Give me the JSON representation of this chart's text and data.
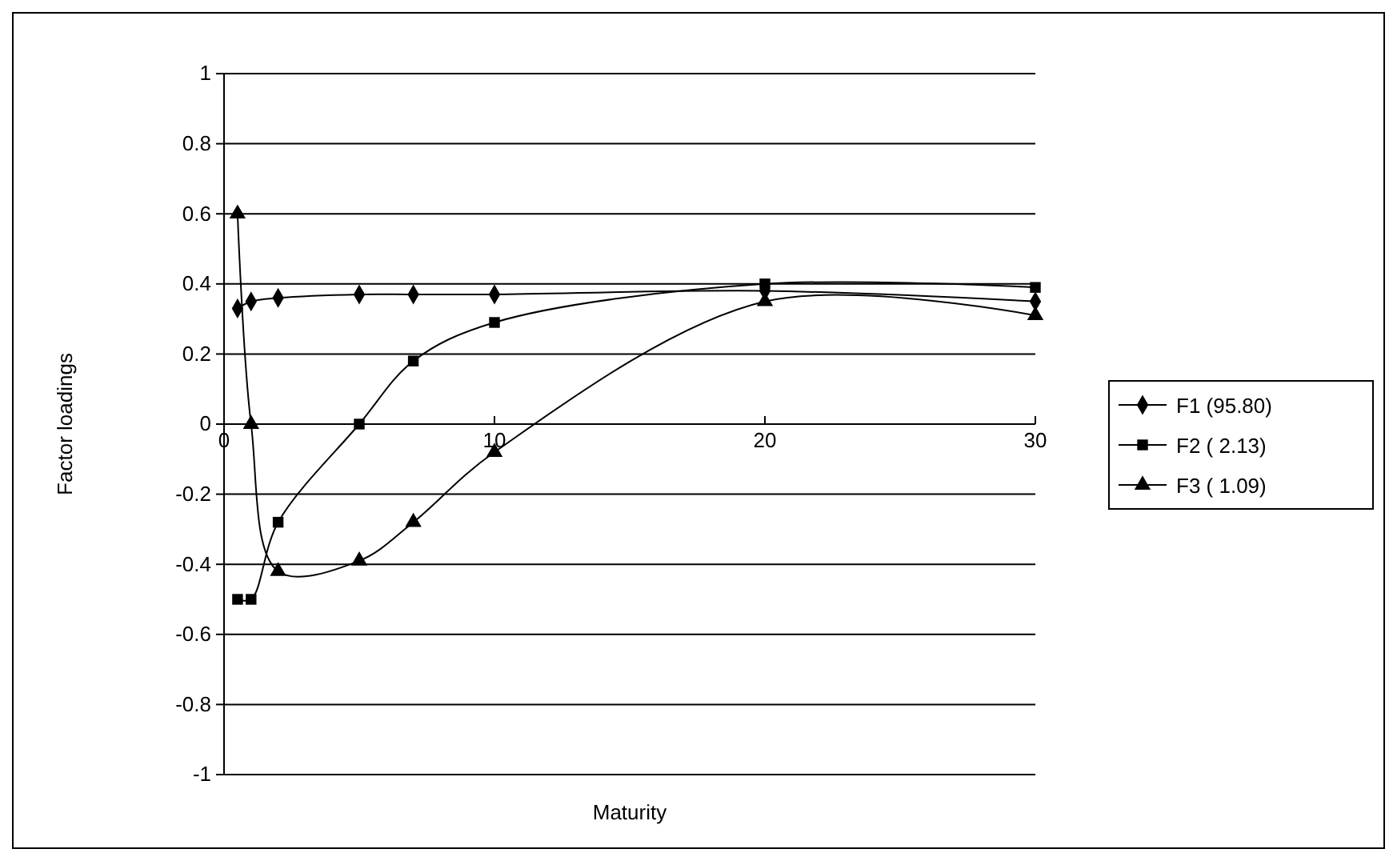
{
  "chart_data": {
    "type": "line",
    "xlabel": "Maturity",
    "ylabel": "Factor loadings",
    "x": [
      0.5,
      1,
      2,
      5,
      7,
      10,
      20,
      30
    ],
    "series": [
      {
        "name": "F1 (95.80)",
        "color": "#000000",
        "marker": "diamond",
        "values": [
          0.33,
          0.35,
          0.36,
          0.37,
          0.37,
          0.37,
          0.38,
          0.35
        ]
      },
      {
        "name": "F2 ( 2.13)",
        "color": "#000000",
        "marker": "square",
        "values": [
          -0.5,
          -0.5,
          -0.28,
          0.0,
          0.18,
          0.29,
          0.4,
          0.39
        ]
      },
      {
        "name": "F3 ( 1.09)",
        "color": "#000000",
        "marker": "triangle",
        "values": [
          0.6,
          0.0,
          -0.42,
          -0.39,
          -0.28,
          -0.08,
          0.35,
          0.31
        ]
      }
    ],
    "xlim": [
      0,
      30
    ],
    "xticks": [
      0,
      10,
      20,
      30
    ],
    "ylim": [
      -1,
      1
    ],
    "yticks": [
      -1,
      -0.8,
      -0.6,
      -0.4,
      -0.2,
      0,
      0.2,
      0.4,
      0.6,
      0.8,
      1
    ],
    "grid": "y",
    "legend": "right",
    "line_style": "solid"
  }
}
